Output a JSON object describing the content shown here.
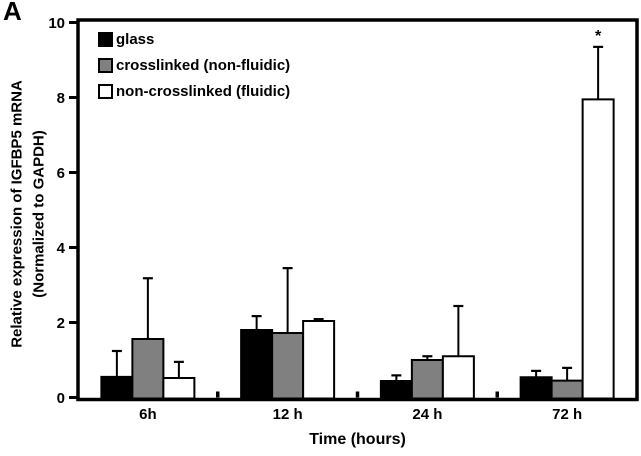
{
  "panel_label": "A",
  "figure": {
    "y_axis_label_line1": "Relative expression of IGFBP5 mRNA",
    "y_axis_label_line2": "(Normalized to GAPDH)",
    "x_axis_label": "Time (hours)"
  },
  "colors": {
    "axis": "#000000",
    "bar_stroke": "#000000",
    "glass": "#000000",
    "crosslinked": "#808080",
    "non_crosslinked": "#ffffff"
  },
  "chart_data": {
    "type": "bar",
    "title": "",
    "xlabel": "Time (hours)",
    "ylabel": "Relative expression of IGFBP5 mRNA (Normalized to GAPDH)",
    "categories": [
      "6h",
      "12 h",
      "24 h",
      "72 h"
    ],
    "ylim": [
      0,
      10
    ],
    "yticks": [
      "0",
      "2",
      "4",
      "6",
      "8",
      "10"
    ],
    "grid": false,
    "legend_position": "top-left-inside",
    "error_bars": "upper-only",
    "series": [
      {
        "name": "glass",
        "fill": "#000000",
        "values": [
          0.55,
          1.8,
          0.44,
          0.54
        ],
        "errors": [
          0.69,
          0.37,
          0.15,
          0.17
        ]
      },
      {
        "name": "crosslinked (non-fluidic)",
        "fill": "#808080",
        "values": [
          1.56,
          1.72,
          1.0,
          0.45
        ],
        "errors": [
          1.62,
          1.73,
          0.1,
          0.34
        ]
      },
      {
        "name": "non-crosslinked (fluidic)",
        "fill": "#ffffff",
        "values": [
          0.52,
          2.04,
          1.1,
          7.95
        ],
        "errors": [
          0.43,
          0.05,
          1.34,
          1.4
        ]
      }
    ],
    "annotations": [
      {
        "text": "*",
        "series_index": 2,
        "category_index": 3,
        "placement": "above-error-bar"
      }
    ]
  }
}
